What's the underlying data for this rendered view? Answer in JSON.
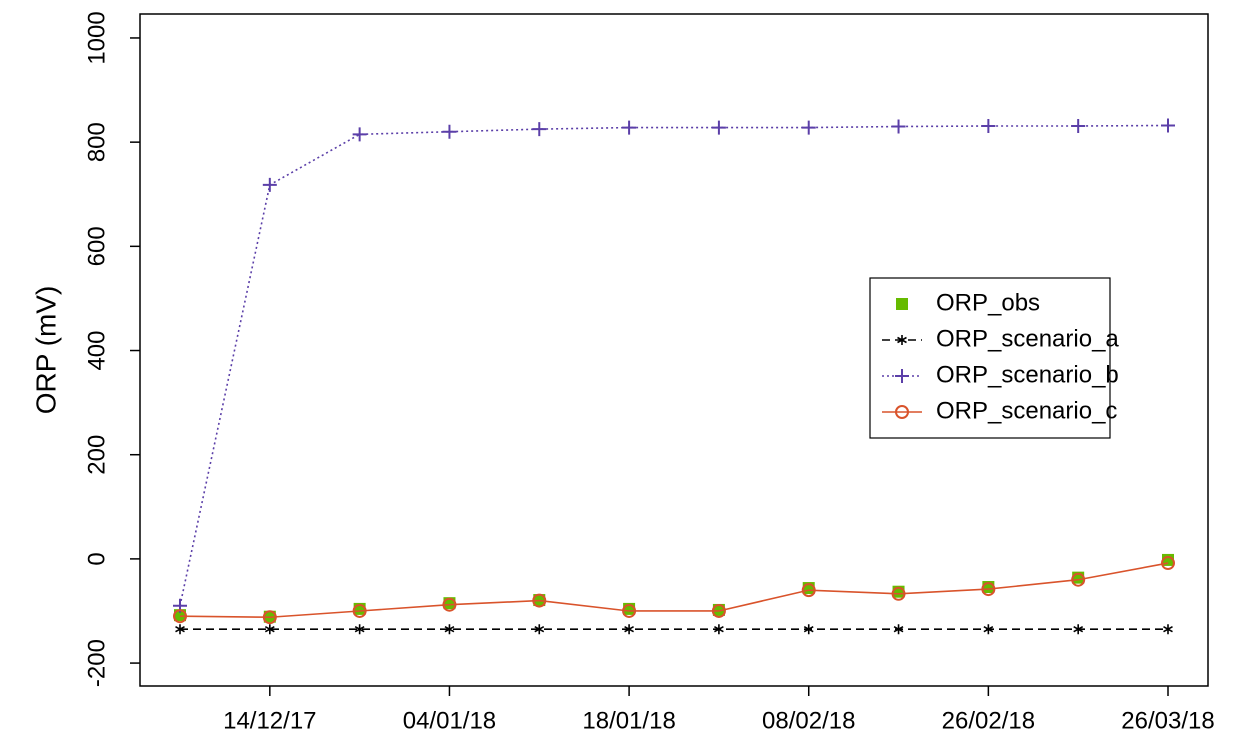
{
  "chart_data": {
    "type": "line",
    "ylabel": "ORP (mV)",
    "categories": [
      null,
      "14/12/17",
      null,
      "04/01/18",
      null,
      "18/01/18",
      null,
      "08/02/18",
      null,
      "26/02/18",
      null,
      "26/03/18"
    ],
    "ylim": [
      -244,
      1046
    ],
    "yticks": [
      -200,
      0,
      200,
      400,
      600,
      800,
      1000
    ],
    "legend": "right",
    "series": [
      {
        "name": "ORP_obs",
        "color": "#66bb00",
        "marker": "square",
        "linestyle": null,
        "values": [
          -108,
          -111,
          -96,
          -85,
          -79,
          -96,
          -98,
          -56,
          -63,
          -54,
          -36,
          -2
        ]
      },
      {
        "name": "ORP_scenario_a",
        "color": "#000000",
        "marker": "star",
        "linestyle": "dashed",
        "values": [
          -135,
          -135,
          -135,
          -135,
          -135,
          -135,
          -135,
          -135,
          -135,
          -135,
          -135,
          -135
        ]
      },
      {
        "name": "ORP_scenario_b",
        "color": "#5b3fa8",
        "marker": "plus",
        "linestyle": "dotted",
        "values": [
          -90,
          718,
          815,
          820,
          825,
          828,
          828,
          828,
          830,
          831,
          831,
          832
        ]
      },
      {
        "name": "ORP_scenario_c",
        "color": "#d9532b",
        "marker": "circle",
        "linestyle": "solid",
        "values": [
          -110,
          -112,
          -100,
          -88,
          -80,
          -100,
          -100,
          -60,
          -67,
          -58,
          -40,
          -8
        ]
      }
    ]
  }
}
